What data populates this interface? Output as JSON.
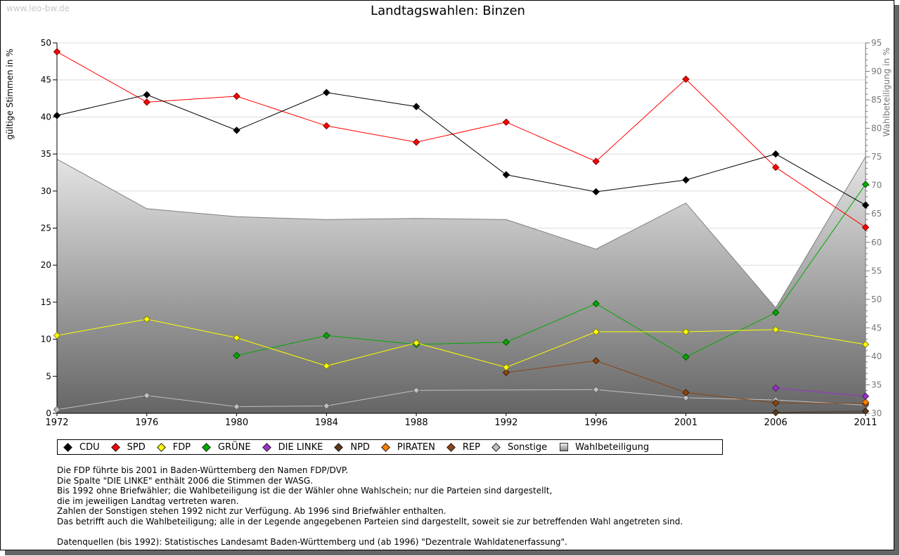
{
  "watermark": "www.leo-bw.de",
  "chart_data": {
    "type": "line",
    "title": "Landtagswahlen: Binzen",
    "ylabel": "gültige Stimmen in %",
    "y2label": "Wahlbeteiligung in %",
    "ylim": [
      0,
      50
    ],
    "y2lim": [
      30,
      95
    ],
    "yticks": [
      "0",
      "5",
      "10",
      "15",
      "20",
      "25",
      "30",
      "35",
      "40",
      "45",
      "50"
    ],
    "y2ticks": [
      "30",
      "35",
      "40",
      "45",
      "50",
      "55",
      "60",
      "65",
      "70",
      "75",
      "80",
      "85",
      "90",
      "95"
    ],
    "grid": true,
    "legend_position": "bottom",
    "x": [
      "1972",
      "1976",
      "1980",
      "1984",
      "1988",
      "1992",
      "1996",
      "2001",
      "2006",
      "2011"
    ],
    "series": [
      {
        "name": "CDU",
        "color": "#000000",
        "values": [
          40.2,
          43.0,
          38.2,
          43.3,
          41.4,
          32.2,
          29.9,
          31.5,
          35.0,
          28.1
        ]
      },
      {
        "name": "SPD",
        "color": "#ff0000",
        "values": [
          48.8,
          42.0,
          42.8,
          38.8,
          36.6,
          39.3,
          34.0,
          45.1,
          33.2,
          25.1
        ]
      },
      {
        "name": "FDP",
        "color": "#ffff00",
        "values": [
          10.5,
          12.7,
          10.2,
          6.4,
          9.5,
          6.2,
          11.0,
          11.0,
          11.3,
          9.3
        ]
      },
      {
        "name": "GRÜNE",
        "color": "#00aa00",
        "values": [
          null,
          null,
          7.8,
          10.5,
          9.3,
          9.6,
          14.8,
          7.6,
          13.6,
          30.9
        ]
      },
      {
        "name": "DIE LINKE",
        "color": "#9933cc",
        "values": [
          null,
          null,
          null,
          null,
          null,
          null,
          null,
          null,
          3.4,
          2.3
        ]
      },
      {
        "name": "NPD",
        "color": "#5a3a1e",
        "values": [
          null,
          null,
          null,
          null,
          null,
          null,
          null,
          null,
          0.1,
          0.3
        ]
      },
      {
        "name": "PIRATEN",
        "color": "#ff8000",
        "values": [
          null,
          null,
          null,
          null,
          null,
          null,
          null,
          null,
          null,
          1.5
        ]
      },
      {
        "name": "REP",
        "color": "#8b4513",
        "values": [
          null,
          null,
          null,
          null,
          null,
          5.5,
          7.1,
          2.8,
          1.4,
          1.3
        ]
      },
      {
        "name": "Sonstige",
        "color": "#c0c0c0",
        "values": [
          0.5,
          2.4,
          0.9,
          1.0,
          3.1,
          null,
          3.2,
          2.1,
          1.8,
          1.1
        ]
      }
    ],
    "turnout": {
      "name": "Wahlbeteiligung",
      "axis": "right",
      "values": [
        74.6,
        65.9,
        64.5,
        64.0,
        64.2,
        64.0,
        58.8,
        66.9,
        48.5,
        75.0
      ]
    }
  },
  "notes": [
    "Die FDP führte bis 2001 in Baden-Württemberg den Namen FDP/DVP.",
    "Die Spalte \"DIE LINKE\" enthält 2006 die Stimmen der WASG.",
    "Bis 1992 ohne Briefwähler; die Wahlbeteiligung ist die der Wähler ohne Wahlschein; nur die Parteien sind dargestellt,",
    "die im jeweiligen Landtag vertreten waren.",
    "Zahlen der Sonstigen stehen 1992 nicht zur Verfügung. Ab 1996 sind Briefwähler enthalten.",
    "Das betrifft auch die Wahlbeteiligung; alle in der Legende angegebenen Parteien sind dargestellt, soweit sie zur betreffenden Wahl angetreten sind.",
    "",
    "Datenquellen (bis 1992): Statistisches Landesamt Baden-Württemberg und (ab 1996) \"Dezentrale Wahldatenerfassung\"."
  ]
}
